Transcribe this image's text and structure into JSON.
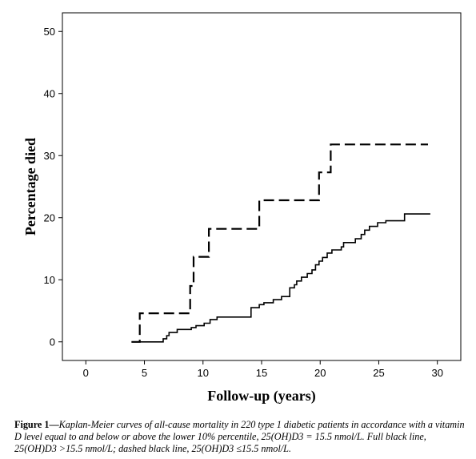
{
  "chart_data": {
    "type": "line",
    "xlabel": "Follow-up (years)",
    "ylabel": "Percentage died",
    "xlim": [
      -2,
      32
    ],
    "ylim": [
      -3,
      53
    ],
    "xticks": [
      0,
      5,
      10,
      15,
      20,
      25,
      30
    ],
    "yticks": [
      0,
      10,
      20,
      30,
      40,
      50
    ],
    "grid": false,
    "series": [
      {
        "name": "25(OH)D3 >15.5 nmol/L",
        "style": "solid",
        "color": "#000000",
        "points": [
          [
            3.9,
            0
          ],
          [
            6.4,
            0
          ],
          [
            6.6,
            0.5
          ],
          [
            6.9,
            1.0
          ],
          [
            7.1,
            1.5
          ],
          [
            7.8,
            2.0
          ],
          [
            9.0,
            2.3
          ],
          [
            9.4,
            2.6
          ],
          [
            10.1,
            3.0
          ],
          [
            10.6,
            3.6
          ],
          [
            11.2,
            4.0
          ],
          [
            13.9,
            4.0
          ],
          [
            14.1,
            5.5
          ],
          [
            14.8,
            6.0
          ],
          [
            15.2,
            6.3
          ],
          [
            16.0,
            6.8
          ],
          [
            16.7,
            7.3
          ],
          [
            17.4,
            8.7
          ],
          [
            17.8,
            9.2
          ],
          [
            18.0,
            9.8
          ],
          [
            18.4,
            10.4
          ],
          [
            18.9,
            11.0
          ],
          [
            19.3,
            11.6
          ],
          [
            19.6,
            12.4
          ],
          [
            19.9,
            13.0
          ],
          [
            20.2,
            13.6
          ],
          [
            20.6,
            14.3
          ],
          [
            21.0,
            14.8
          ],
          [
            21.8,
            15.3
          ],
          [
            22.0,
            16.0
          ],
          [
            23.0,
            16.6
          ],
          [
            23.5,
            17.3
          ],
          [
            23.8,
            18.0
          ],
          [
            24.2,
            18.6
          ],
          [
            24.9,
            19.2
          ],
          [
            25.6,
            19.5
          ],
          [
            27.2,
            20.6
          ],
          [
            29.4,
            20.6
          ]
        ]
      },
      {
        "name": "25(OH)D3 ≤15.5 nmol/L",
        "style": "dashed",
        "color": "#000000",
        "points": [
          [
            3.9,
            0
          ],
          [
            4.6,
            0
          ],
          [
            4.6,
            4.6
          ],
          [
            8.9,
            4.6
          ],
          [
            8.9,
            9.0
          ],
          [
            9.2,
            9.0
          ],
          [
            9.2,
            13.7
          ],
          [
            10.5,
            13.7
          ],
          [
            10.5,
            18.2
          ],
          [
            14.8,
            18.2
          ],
          [
            14.8,
            22.8
          ],
          [
            19.9,
            22.8
          ],
          [
            19.9,
            27.3
          ],
          [
            20.9,
            27.3
          ],
          [
            20.9,
            31.8
          ],
          [
            29.2,
            31.8
          ]
        ]
      }
    ]
  },
  "caption": {
    "label": "Figure 1—",
    "text": "Kaplan-Meier curves of all-cause mortality in 220 type 1 diabetic patients in accordance with a vitamin D level equal to and below or above the lower 10% percentile, 25(OH)D3 = 15.5 nmol/L. Full black line, 25(OH)D3 >15.5 nmol/L; dashed black line, 25(OH)D3 ≤15.5 nmol/L."
  }
}
